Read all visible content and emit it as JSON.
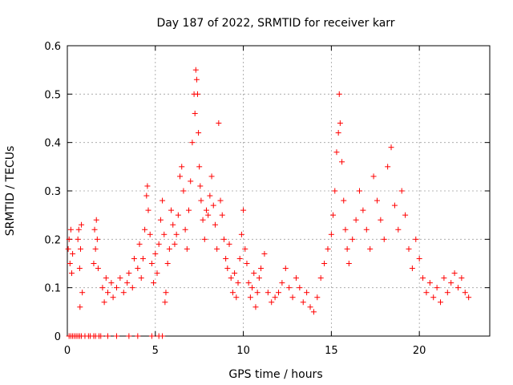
{
  "chart_data": {
    "type": "scatter",
    "title": "Day 187 of 2022, SRMTID for receiver karr",
    "xlabel": "GPS time / hours",
    "ylabel": "SRMTID / TECUs",
    "xlim": [
      0,
      24
    ],
    "ylim": [
      0,
      0.6
    ],
    "xticks": [
      0,
      5,
      10,
      15,
      20
    ],
    "yticks": [
      0,
      0.1,
      0.2,
      0.3,
      0.4,
      0.5,
      0.6
    ],
    "xtick_labels": [
      "0",
      "5",
      "10",
      "15",
      "20"
    ],
    "ytick_labels": [
      "0",
      "0.1",
      "0.2",
      "0.3",
      "0.4",
      "0.5",
      "0.6"
    ],
    "grid": true,
    "marker": "+",
    "color": "#ff0000",
    "series": [
      {
        "name": "SRMTID",
        "points": [
          [
            0.05,
            0.18
          ],
          [
            0.1,
            0.2
          ],
          [
            0.15,
            0.15
          ],
          [
            0.2,
            0.22
          ],
          [
            0.25,
            0.13
          ],
          [
            0.3,
            0.17
          ],
          [
            0.6,
            0.2
          ],
          [
            0.65,
            0.22
          ],
          [
            0.7,
            0.14
          ],
          [
            0.72,
            0.06
          ],
          [
            0.75,
            0.18
          ],
          [
            0.8,
            0.23
          ],
          [
            0.85,
            0.09
          ],
          [
            1.5,
            0.15
          ],
          [
            1.55,
            0.22
          ],
          [
            1.6,
            0.18
          ],
          [
            1.65,
            0.24
          ],
          [
            1.7,
            0.2
          ],
          [
            1.75,
            0.14
          ],
          [
            2.0,
            0.1
          ],
          [
            2.1,
            0.07
          ],
          [
            2.2,
            0.12
          ],
          [
            2.3,
            0.09
          ],
          [
            2.5,
            0.11
          ],
          [
            2.6,
            0.08
          ],
          [
            2.8,
            0.1
          ],
          [
            3.0,
            0.12
          ],
          [
            3.2,
            0.09
          ],
          [
            3.4,
            0.11
          ],
          [
            3.5,
            0.13
          ],
          [
            3.7,
            0.1
          ],
          [
            3.8,
            0.16
          ],
          [
            4.0,
            0.14
          ],
          [
            4.1,
            0.19
          ],
          [
            4.2,
            0.12
          ],
          [
            4.3,
            0.16
          ],
          [
            4.4,
            0.22
          ],
          [
            4.5,
            0.29
          ],
          [
            4.55,
            0.31
          ],
          [
            4.6,
            0.26
          ],
          [
            4.7,
            0.21
          ],
          [
            4.8,
            0.15
          ],
          [
            4.9,
            0.11
          ],
          [
            5.0,
            0.17
          ],
          [
            5.1,
            0.13
          ],
          [
            5.2,
            0.19
          ],
          [
            5.3,
            0.24
          ],
          [
            5.4,
            0.28
          ],
          [
            5.5,
            0.21
          ],
          [
            5.55,
            0.07
          ],
          [
            5.6,
            0.09
          ],
          [
            5.7,
            0.15
          ],
          [
            5.8,
            0.18
          ],
          [
            5.9,
            0.26
          ],
          [
            6.0,
            0.23
          ],
          [
            6.1,
            0.19
          ],
          [
            6.2,
            0.21
          ],
          [
            6.3,
            0.25
          ],
          [
            6.4,
            0.33
          ],
          [
            6.5,
            0.35
          ],
          [
            6.6,
            0.3
          ],
          [
            6.7,
            0.22
          ],
          [
            6.8,
            0.18
          ],
          [
            6.9,
            0.26
          ],
          [
            7.0,
            0.32
          ],
          [
            7.1,
            0.4
          ],
          [
            7.2,
            0.5
          ],
          [
            7.25,
            0.46
          ],
          [
            7.3,
            0.55
          ],
          [
            7.35,
            0.53
          ],
          [
            7.4,
            0.5
          ],
          [
            7.45,
            0.42
          ],
          [
            7.5,
            0.35
          ],
          [
            7.55,
            0.31
          ],
          [
            7.6,
            0.28
          ],
          [
            7.7,
            0.24
          ],
          [
            7.8,
            0.2
          ],
          [
            7.9,
            0.26
          ],
          [
            8.0,
            0.25
          ],
          [
            8.1,
            0.29
          ],
          [
            8.2,
            0.33
          ],
          [
            8.3,
            0.27
          ],
          [
            8.4,
            0.23
          ],
          [
            8.5,
            0.18
          ],
          [
            8.6,
            0.44
          ],
          [
            8.7,
            0.28
          ],
          [
            8.8,
            0.25
          ],
          [
            8.9,
            0.2
          ],
          [
            9.0,
            0.16
          ],
          [
            9.1,
            0.14
          ],
          [
            9.2,
            0.19
          ],
          [
            9.3,
            0.12
          ],
          [
            9.4,
            0.09
          ],
          [
            9.5,
            0.13
          ],
          [
            9.6,
            0.08
          ],
          [
            9.7,
            0.11
          ],
          [
            9.8,
            0.16
          ],
          [
            9.9,
            0.21
          ],
          [
            10.0,
            0.26
          ],
          [
            10.1,
            0.18
          ],
          [
            10.2,
            0.15
          ],
          [
            10.3,
            0.11
          ],
          [
            10.4,
            0.08
          ],
          [
            10.5,
            0.1
          ],
          [
            10.6,
            0.13
          ],
          [
            10.7,
            0.06
          ],
          [
            10.8,
            0.09
          ],
          [
            10.9,
            0.12
          ],
          [
            11.0,
            0.14
          ],
          [
            11.2,
            0.17
          ],
          [
            11.4,
            0.09
          ],
          [
            11.6,
            0.07
          ],
          [
            11.8,
            0.08
          ],
          [
            12.0,
            0.09
          ],
          [
            12.2,
            0.11
          ],
          [
            12.4,
            0.14
          ],
          [
            12.6,
            0.1
          ],
          [
            12.8,
            0.08
          ],
          [
            13.0,
            0.12
          ],
          [
            13.2,
            0.1
          ],
          [
            13.4,
            0.07
          ],
          [
            13.6,
            0.09
          ],
          [
            13.8,
            0.06
          ],
          [
            14.0,
            0.05
          ],
          [
            14.2,
            0.08
          ],
          [
            14.4,
            0.12
          ],
          [
            14.6,
            0.15
          ],
          [
            14.8,
            0.18
          ],
          [
            15.0,
            0.21
          ],
          [
            15.1,
            0.25
          ],
          [
            15.2,
            0.3
          ],
          [
            15.3,
            0.38
          ],
          [
            15.4,
            0.42
          ],
          [
            15.45,
            0.5
          ],
          [
            15.5,
            0.44
          ],
          [
            15.6,
            0.36
          ],
          [
            15.7,
            0.28
          ],
          [
            15.8,
            0.22
          ],
          [
            15.9,
            0.18
          ],
          [
            16.0,
            0.15
          ],
          [
            16.2,
            0.2
          ],
          [
            16.4,
            0.24
          ],
          [
            16.6,
            0.3
          ],
          [
            16.8,
            0.26
          ],
          [
            17.0,
            0.22
          ],
          [
            17.2,
            0.18
          ],
          [
            17.4,
            0.33
          ],
          [
            17.6,
            0.28
          ],
          [
            17.8,
            0.24
          ],
          [
            18.0,
            0.2
          ],
          [
            18.2,
            0.35
          ],
          [
            18.4,
            0.39
          ],
          [
            18.6,
            0.27
          ],
          [
            18.8,
            0.22
          ],
          [
            19.0,
            0.3
          ],
          [
            19.2,
            0.25
          ],
          [
            19.4,
            0.18
          ],
          [
            19.6,
            0.14
          ],
          [
            19.8,
            0.2
          ],
          [
            20.0,
            0.16
          ],
          [
            20.2,
            0.12
          ],
          [
            20.4,
            0.09
          ],
          [
            20.6,
            0.11
          ],
          [
            20.8,
            0.08
          ],
          [
            21.0,
            0.1
          ],
          [
            21.2,
            0.07
          ],
          [
            21.4,
            0.12
          ],
          [
            21.6,
            0.09
          ],
          [
            21.8,
            0.11
          ],
          [
            22.0,
            0.13
          ],
          [
            22.2,
            0.1
          ],
          [
            22.4,
            0.12
          ],
          [
            22.6,
            0.09
          ],
          [
            22.8,
            0.08
          ]
        ]
      }
    ],
    "zero_band_points": [
      [
        0.1,
        0
      ],
      [
        0.2,
        0
      ],
      [
        0.3,
        0
      ],
      [
        0.4,
        0
      ],
      [
        0.5,
        0
      ],
      [
        0.6,
        0
      ],
      [
        0.7,
        0
      ],
      [
        0.8,
        0
      ],
      [
        1.0,
        0
      ],
      [
        1.2,
        0
      ],
      [
        1.3,
        0
      ],
      [
        1.5,
        0
      ],
      [
        1.6,
        0
      ],
      [
        1.8,
        0
      ],
      [
        1.9,
        0
      ],
      [
        2.3,
        0
      ],
      [
        2.8,
        0
      ],
      [
        3.5,
        0
      ],
      [
        4.0,
        0
      ],
      [
        4.8,
        0
      ],
      [
        5.2,
        0
      ],
      [
        5.4,
        0
      ]
    ]
  }
}
